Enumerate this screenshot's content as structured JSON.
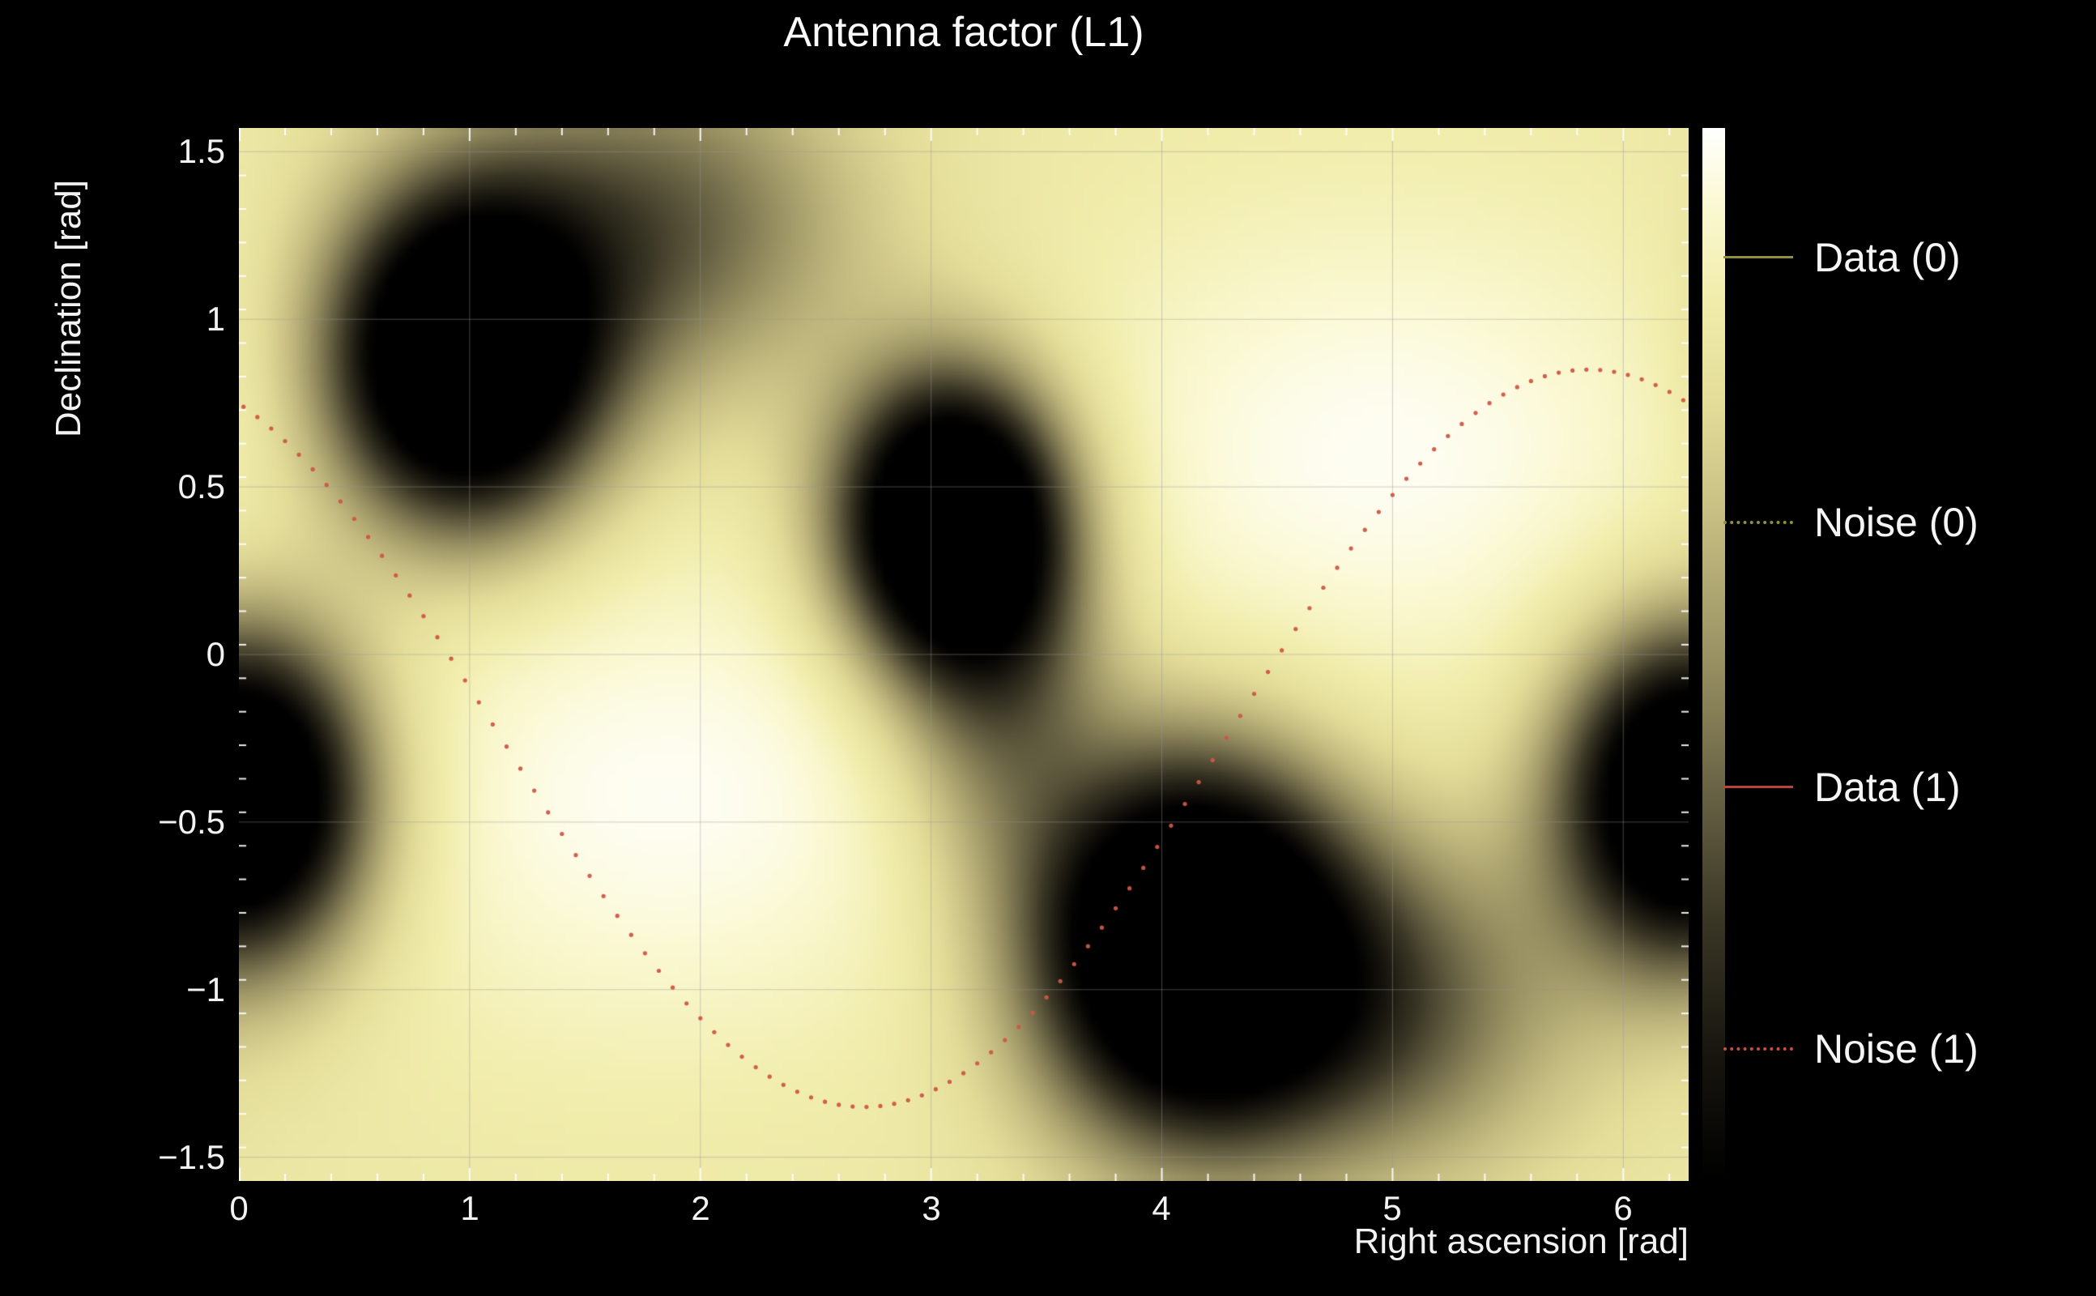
{
  "title": "Antenna factor (L1)",
  "axes": {
    "x": {
      "label": "Right ascension [rad]",
      "min": 0,
      "max": 6.2832,
      "minor_step": 0.2,
      "major_step": 1,
      "tick_values": [
        0,
        1,
        2,
        3,
        4,
        5,
        6
      ],
      "tick_labels": [
        "0",
        "1",
        "2",
        "3",
        "4",
        "5",
        "6"
      ]
    },
    "y": {
      "label": "Declination [rad]",
      "min": -1.5708,
      "max": 1.5708,
      "minor_step": 0.1,
      "major_step": 0.5,
      "tick_values": [
        -1.5,
        -1,
        -0.5,
        0,
        0.5,
        1,
        1.5
      ],
      "tick_labels": [
        "−1.5",
        "−1",
        "−0.5",
        "0",
        "0.5",
        "1",
        "1.5"
      ]
    }
  },
  "legend": {
    "entries": [
      {
        "label": "Data (0)",
        "color": "#8f8f3c",
        "style": "solid"
      },
      {
        "label": "Noise (0)",
        "color": "#8f8f3c",
        "style": "dotted"
      },
      {
        "label": "Data (1)",
        "color": "#bb4438",
        "style": "solid"
      },
      {
        "label": "Noise (1)",
        "color": "#c94e40",
        "style": "dotted"
      }
    ]
  },
  "chart_data": {
    "type": "heatmap",
    "title": "Antenna factor (L1)",
    "xlabel": "Right ascension [rad]",
    "ylabel": "Declination [rad]",
    "xlim": [
      0,
      6.2832
    ],
    "ylim": [
      -1.5708,
      1.5708
    ],
    "grid": true,
    "background_level": 0.8,
    "colormap_stops": [
      {
        "v": 0.0,
        "c": "#000000"
      },
      {
        "v": 0.12,
        "c": "#17150e"
      },
      {
        "v": 0.25,
        "c": "#3b3726"
      },
      {
        "v": 0.38,
        "c": "#6c6647"
      },
      {
        "v": 0.5,
        "c": "#9a9263"
      },
      {
        "v": 0.62,
        "c": "#c3ba80"
      },
      {
        "v": 0.74,
        "c": "#e4dd99"
      },
      {
        "v": 0.84,
        "c": "#f1edac"
      },
      {
        "v": 0.93,
        "c": "#fbf9d4"
      },
      {
        "v": 1.0,
        "c": "#ffffff"
      }
    ],
    "antenna_minima": [
      {
        "ra": 0.98,
        "dec": 0.88,
        "amp": 1.35,
        "sigma_ra": 0.4,
        "sigma_dec": 0.34
      },
      {
        "ra": 3.08,
        "dec": 0.4,
        "amp": 1.3,
        "sigma_ra": 0.34,
        "sigma_dec": 0.3
      },
      {
        "ra": 4.12,
        "dec": -0.86,
        "amp": 1.4,
        "sigma_ra": 0.46,
        "sigma_dec": 0.38
      },
      {
        "ra": 6.29,
        "dec": -0.42,
        "amp": 1.3,
        "sigma_ra": 0.38,
        "sigma_dec": 0.34
      },
      {
        "ra": 1.8,
        "dec": 1.28,
        "amp": 0.45,
        "sigma_ra": 0.6,
        "sigma_dec": 0.35
      },
      {
        "ra": 3.3,
        "dec": -0.08,
        "amp": 0.4,
        "sigma_ra": 0.32,
        "sigma_dec": 0.4
      },
      {
        "ra": 4.95,
        "dec": -1.05,
        "amp": 0.45,
        "sigma_ra": 0.55,
        "sigma_dec": 0.35
      }
    ],
    "bright_maxima": [
      {
        "ra": 1.85,
        "dec": -0.42,
        "amp": 0.18,
        "sigma_ra": 1.05,
        "sigma_dec": 0.55
      },
      {
        "ra": 4.95,
        "dec": 0.6,
        "amp": 0.18,
        "sigma_ra": 1.05,
        "sigma_dec": 0.55
      }
    ],
    "noise_track": {
      "series": "Noise (1)",
      "marker": "dot",
      "color": "#cc5746",
      "model": "dec = offset + amplitude * cos(ra - ra_peak)",
      "offset": -0.25,
      "amplitude": 1.1,
      "ra_peak": 5.85,
      "ra_step": 0.06,
      "approx_points": [
        [
          0.0,
          0.75
        ],
        [
          0.5,
          0.41
        ],
        [
          1.0,
          -0.1
        ],
        [
          1.5,
          -0.64
        ],
        [
          2.0,
          -1.09
        ],
        [
          2.5,
          -1.33
        ],
        [
          2.71,
          -1.35
        ],
        [
          3.0,
          -1.3
        ],
        [
          3.5,
          -1.02
        ],
        [
          4.0,
          -0.55
        ],
        [
          4.5,
          -0.01
        ],
        [
          5.0,
          0.48
        ],
        [
          5.5,
          0.78
        ],
        [
          5.85,
          0.85
        ],
        [
          6.28,
          0.75
        ]
      ]
    }
  }
}
